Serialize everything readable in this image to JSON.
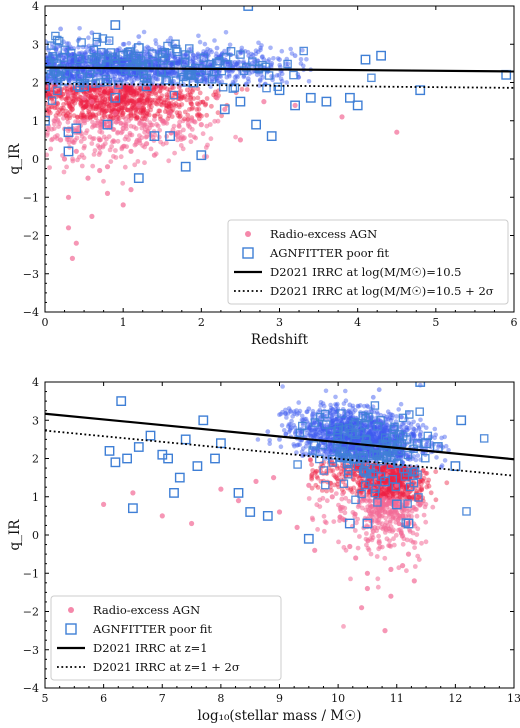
{
  "colors": {
    "radio_excess": "#f26a95",
    "radio_excess_dense": "#ee2244",
    "poor_fit_edge": "#3f7fd6",
    "sf_cloud": "#3f5cf0",
    "line": "#000000"
  },
  "chart_data": [
    {
      "type": "scatter",
      "title": "",
      "xlabel": "Redshift",
      "ylabel": "q_IR",
      "xlim": [
        0,
        6
      ],
      "ylim": [
        -4,
        4
      ],
      "xticks": [
        "0",
        "1",
        "2",
        "3",
        "4",
        "5",
        "6"
      ],
      "yticks": [
        "4",
        "3",
        "2",
        "1",
        "0",
        "−1",
        "−2",
        "−3",
        "−4"
      ],
      "legend_position": "lower-right",
      "legend": [
        {
          "label": "Radio-excess AGN",
          "marker": "filled-circle"
        },
        {
          "label": "AGNFITTER poor fit",
          "marker": "open-square"
        },
        {
          "label": "D2021 IRRC at log(M/M☉)=10.5",
          "marker": "solid-line"
        },
        {
          "label": "D2021 IRRC at log(M/M☉)=10.5 + 2σ",
          "marker": "dotted-line"
        }
      ],
      "lines": [
        {
          "name": "D2021 IRRC at log(M/M☉)=10.5",
          "style": "solid",
          "x": [
            0,
            6
          ],
          "y": [
            2.39,
            2.29
          ]
        },
        {
          "name": "D2021 IRRC at log(M/M☉)=10.5 + 2σ",
          "style": "dotted",
          "x": [
            0,
            6
          ],
          "y": [
            1.97,
            1.86
          ]
        }
      ],
      "radio_excess_agn_sample": {
        "x": [
          0.2,
          0.3,
          0.35,
          0.4,
          0.5,
          0.55,
          0.6,
          0.7,
          0.8,
          0.9,
          1.0,
          1.1,
          1.2,
          1.3,
          1.5,
          1.7,
          2.0,
          2.3,
          2.5,
          2.8,
          3.2,
          3.8,
          4.5,
          0.3,
          0.4,
          0.6,
          0.8,
          1.0,
          1.4,
          0.5,
          0.3,
          0.25,
          0.9,
          1.6,
          2.2,
          0.7,
          1.1
        ],
        "y": [
          0.5,
          -1.0,
          -2.6,
          0.2,
          1.0,
          -0.5,
          1.5,
          0.3,
          -0.2,
          1.2,
          0.8,
          -0.8,
          1.4,
          0.4,
          1.0,
          0.6,
          0.9,
          1.3,
          0.5,
          1.5,
          1.4,
          1.1,
          0.7,
          -1.8,
          -2.2,
          -1.5,
          -0.9,
          -1.2,
          0.1,
          1.6,
          1.7,
          0.0,
          1.8,
          1.2,
          1.6,
          -0.3,
          0.2
        ]
      },
      "agnfitter_poor_fit_sample": {
        "x": [
          0.0,
          0.3,
          0.3,
          0.5,
          0.9,
          0.9,
          1.2,
          1.2,
          1.4,
          1.8,
          2.0,
          2.2,
          2.5,
          2.6,
          2.9,
          3.2,
          3.4,
          3.6,
          3.9,
          4.0,
          4.1,
          4.3,
          4.8,
          5.9,
          0.0,
          0.4,
          0.8,
          1.0,
          1.3,
          1.6,
          1.9,
          2.3,
          2.7,
          3.0
        ],
        "y": [
          1.0,
          0.2,
          0.7,
          1.9,
          3.5,
          1.6,
          2.9,
          -0.5,
          0.6,
          -0.2,
          0.1,
          2.5,
          1.5,
          4.0,
          0.6,
          1.4,
          1.6,
          1.5,
          1.6,
          1.4,
          2.6,
          2.7,
          1.8,
          2.2,
          1.9,
          0.8,
          0.9,
          2.7,
          1.9,
          0.6,
          2.0,
          1.3,
          0.9,
          1.8
        ]
      },
      "sf_cloud_sample": {
        "x": [
          0.1,
          0.3,
          0.5,
          0.7,
          0.9,
          1.1,
          1.3,
          1.5,
          1.7,
          1.9,
          2.1,
          2.3,
          2.5,
          2.7,
          2.9,
          3.1,
          0.2,
          0.6,
          1.0,
          1.4,
          1.8,
          2.2,
          2.6,
          3.0,
          3.2,
          0.4,
          0.8,
          1.2,
          1.6,
          2.0,
          2.4,
          2.8
        ],
        "y": [
          2.6,
          2.9,
          2.4,
          3.1,
          2.7,
          2.8,
          2.3,
          2.9,
          2.5,
          2.7,
          2.4,
          2.6,
          2.8,
          2.3,
          2.5,
          2.4,
          3.4,
          3.3,
          3.0,
          2.6,
          2.2,
          2.9,
          2.1,
          2.6,
          2.7,
          2.2,
          2.1,
          3.2,
          3.0,
          2.2,
          2.4,
          2.6
        ]
      }
    },
    {
      "type": "scatter",
      "title": "",
      "xlabel": "log₁₀(stellar mass / M☉)",
      "ylabel": "q_IR",
      "xlim": [
        5,
        13
      ],
      "ylim": [
        -4,
        4
      ],
      "xticks": [
        "5",
        "6",
        "7",
        "8",
        "9",
        "10",
        "11",
        "12",
        "13"
      ],
      "yticks": [
        "4",
        "3",
        "2",
        "1",
        "0",
        "−1",
        "−2",
        "−3",
        "−4"
      ],
      "legend_position": "lower-left",
      "legend": [
        {
          "label": "Radio-excess AGN",
          "marker": "filled-circle"
        },
        {
          "label": "AGNFITTER poor fit",
          "marker": "open-square"
        },
        {
          "label": "D2021 IRRC at z=1",
          "marker": "solid-line"
        },
        {
          "label": "D2021 IRRC at z=1 + 2σ",
          "marker": "dotted-line"
        }
      ],
      "lines": [
        {
          "name": "D2021 IRRC at z=1",
          "style": "solid",
          "x": [
            5,
            13
          ],
          "y": [
            3.17,
            1.98
          ]
        },
        {
          "name": "D2021 IRRC at z=1 + 2σ",
          "style": "dotted",
          "x": [
            5,
            13
          ],
          "y": [
            2.73,
            1.55
          ]
        }
      ],
      "radio_excess_agn_sample": {
        "x": [
          6.0,
          6.5,
          7.0,
          7.5,
          8.0,
          8.3,
          8.6,
          9.0,
          9.3,
          9.6,
          9.9,
          10.1,
          10.3,
          10.5,
          10.6,
          10.7,
          10.8,
          10.9,
          11.0,
          11.1,
          11.2,
          11.3,
          11.4,
          10.2,
          10.4,
          10.6,
          10.8,
          11.0,
          11.2,
          10.5,
          10.9,
          11.1,
          10.7,
          9.5,
          8.9
        ],
        "y": [
          0.8,
          1.1,
          0.5,
          0.3,
          1.2,
          0.9,
          1.4,
          0.6,
          0.2,
          -0.4,
          1.0,
          0.4,
          -0.6,
          -1.0,
          1.2,
          -0.2,
          0.6,
          -1.6,
          0.9,
          -0.8,
          0.3,
          -1.2,
          0.8,
          -0.3,
          -1.9,
          0.1,
          -2.5,
          1.3,
          -0.5,
          -1.4,
          -0.9,
          0.5,
          1.6,
          1.3,
          1.5
        ]
      },
      "agnfitter_poor_fit_sample": {
        "x": [
          6.1,
          6.2,
          6.3,
          6.5,
          6.6,
          6.8,
          7.0,
          7.1,
          7.3,
          7.4,
          7.6,
          7.7,
          7.9,
          8.0,
          8.3,
          8.5,
          8.8,
          9.5,
          10.5,
          10.8,
          11.0,
          11.2,
          11.5,
          11.7,
          12.0,
          12.1,
          11.4,
          10.2,
          6.4,
          7.2
        ],
        "y": [
          2.2,
          1.9,
          3.5,
          0.7,
          2.3,
          2.6,
          2.1,
          2.0,
          1.5,
          2.5,
          1.8,
          3.0,
          2.0,
          2.4,
          1.1,
          0.6,
          0.5,
          -0.1,
          0.3,
          1.4,
          0.8,
          0.3,
          2.4,
          2.3,
          1.8,
          3.0,
          4.0,
          0.3,
          2.0,
          1.1
        ]
      },
      "sf_cloud_sample": {
        "x": [
          9.0,
          9.2,
          9.4,
          9.6,
          9.8,
          10.0,
          10.2,
          10.4,
          10.6,
          10.8,
          11.0,
          11.2,
          11.4,
          11.6,
          9.5,
          9.9,
          10.3,
          10.7,
          11.1,
          11.5,
          8.8,
          10.1,
          10.5,
          10.9
        ],
        "y": [
          2.5,
          2.8,
          3.0,
          2.6,
          3.1,
          2.9,
          3.4,
          2.7,
          3.6,
          2.8,
          2.5,
          3.2,
          2.6,
          2.4,
          3.3,
          2.4,
          3.0,
          3.8,
          2.9,
          2.2,
          2.7,
          2.3,
          2.6,
          3.0
        ]
      }
    }
  ]
}
